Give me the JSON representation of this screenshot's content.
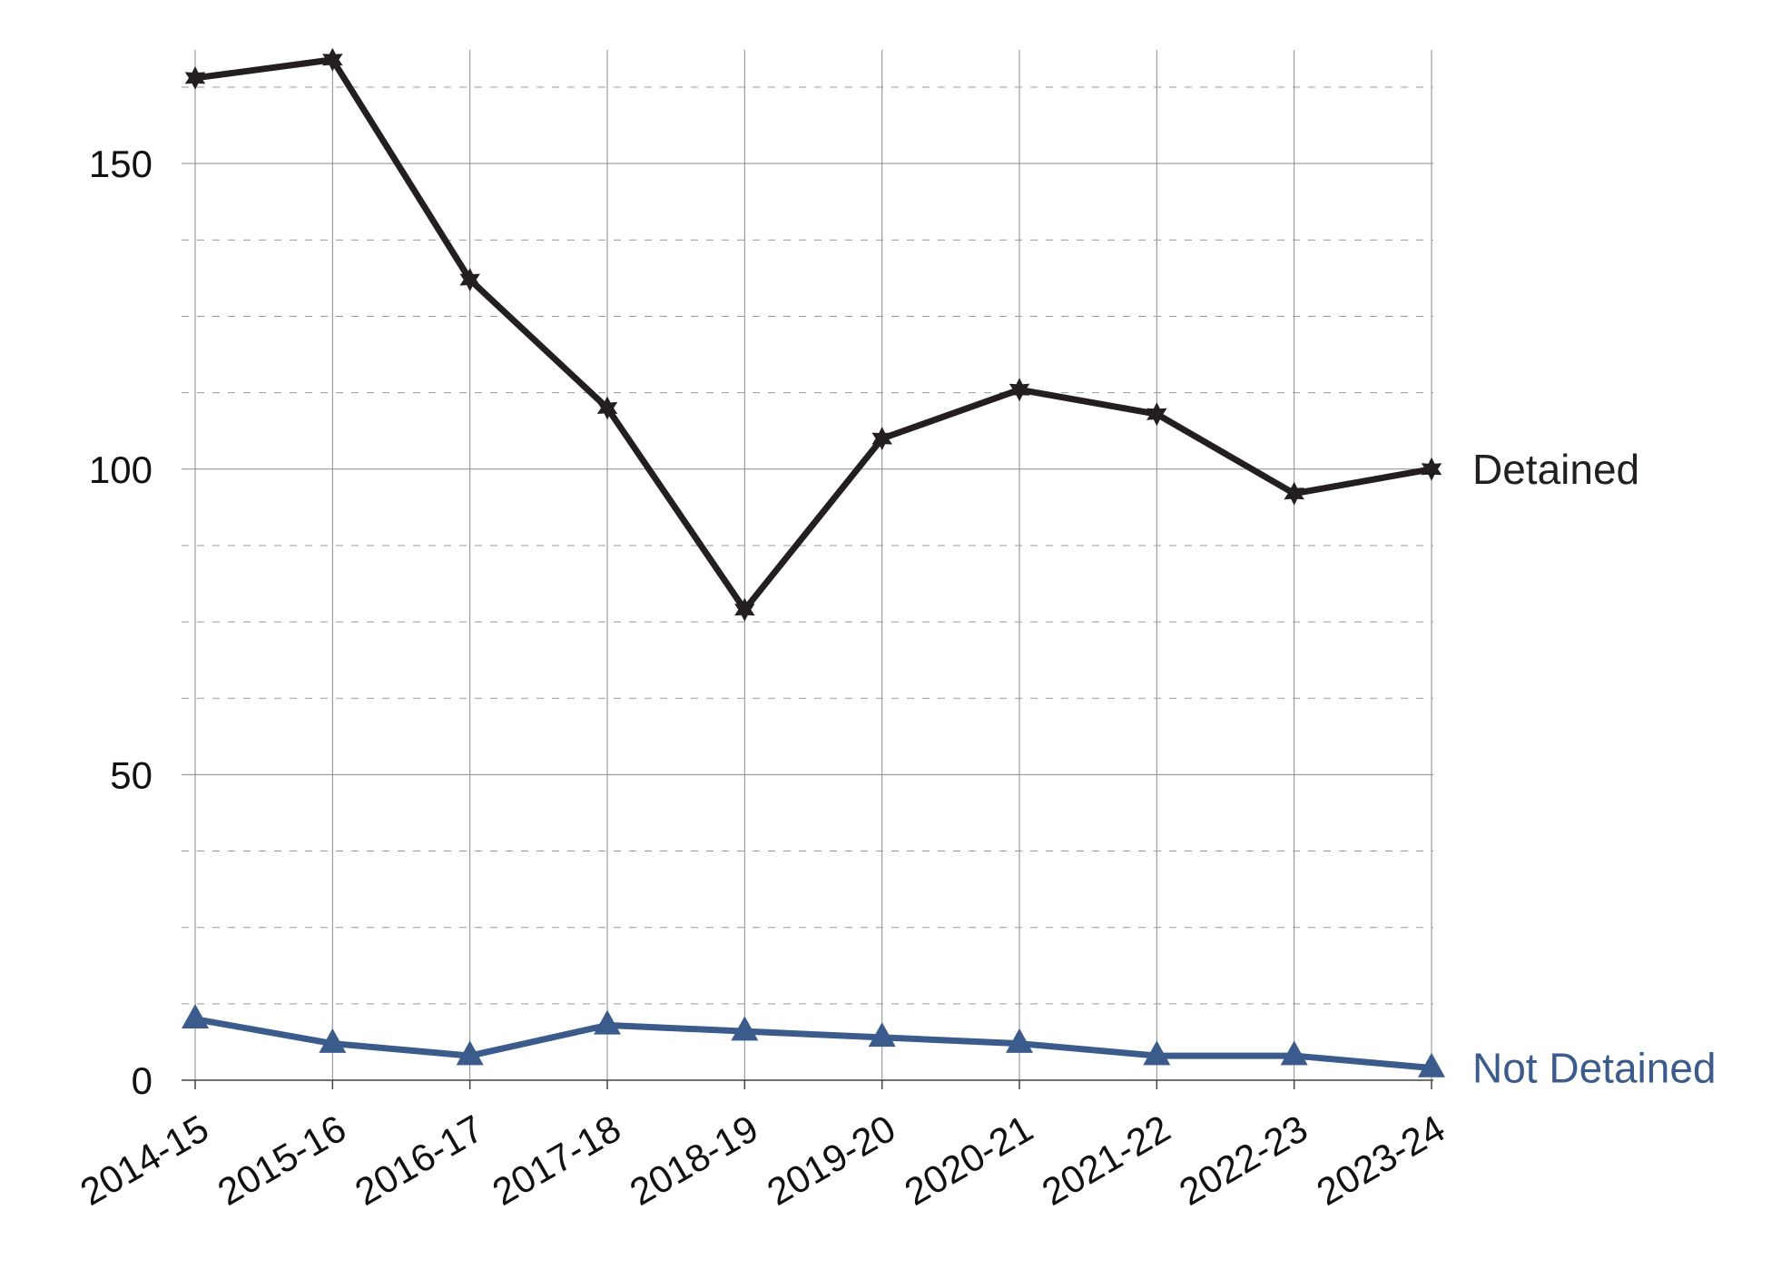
{
  "chart_data": {
    "type": "line",
    "title": "",
    "xlabel": "",
    "ylabel": "",
    "categories": [
      "2014-15",
      "2015-16",
      "2016-17",
      "2017-18",
      "2018-19",
      "2019-20",
      "2020-21",
      "2021-22",
      "2022-23",
      "2023-24"
    ],
    "ylim": [
      0,
      168
    ],
    "yticks": [
      "0",
      "50",
      "100",
      "150"
    ],
    "grid": "on",
    "legend": "inline labels at right end of each line",
    "series": [
      {
        "name": "Detained",
        "color": "#231f20",
        "marker": "star",
        "values": [
          164,
          167,
          131,
          110,
          77,
          105,
          113,
          109,
          96,
          100
        ]
      },
      {
        "name": "Not Detained",
        "color": "#3b5b8c",
        "marker": "triangle",
        "values": [
          10,
          6,
          4,
          9,
          8,
          7,
          6,
          4,
          4,
          2
        ]
      }
    ]
  }
}
